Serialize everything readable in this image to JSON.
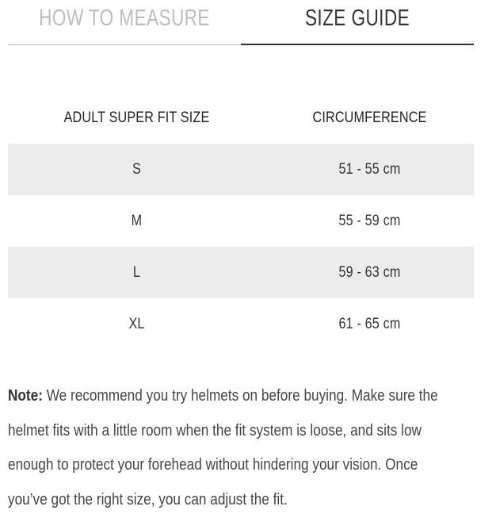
{
  "tabs": [
    {
      "label": "HOW TO MEASURE",
      "active": false
    },
    {
      "label": "SIZE GUIDE",
      "active": true
    }
  ],
  "table": {
    "headers": [
      "ADULT SUPER FIT SIZE",
      "CIRCUMFERENCE"
    ],
    "rows": [
      [
        "S",
        "51 - 55 cm"
      ],
      [
        "M",
        "55 - 59 cm"
      ],
      [
        "L",
        "59 - 63 cm"
      ],
      [
        "XL",
        "61 - 65 cm"
      ]
    ]
  },
  "note": {
    "label": "Note:",
    "text": " We recommend you try helmets on before buying. Make sure the helmet fits with a little room when the fit system is loose, and sits low enough to protect your forehead without hindering your vision. Once you’ve got the right size, you can adjust the fit."
  },
  "colors": {
    "row_alt": "#ececec",
    "active_tab": "#333333",
    "inactive_tab": "#bdbdbd"
  }
}
